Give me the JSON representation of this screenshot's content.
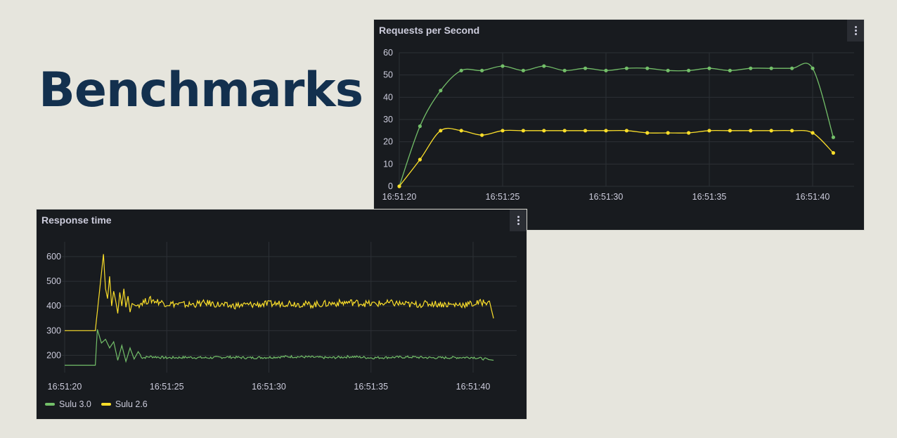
{
  "page": {
    "headline": "Benchmarks"
  },
  "colors": {
    "sulu30": "#73bf69",
    "sulu26": "#fade2a"
  },
  "legend": [
    {
      "label": "Sulu 3.0",
      "color": "#73bf69"
    },
    {
      "label": "Sulu 2.6",
      "color": "#fade2a"
    }
  ],
  "chart_data": [
    {
      "type": "line",
      "title": "Requests per Second",
      "x": [
        "16:51:20",
        "16:51:21",
        "16:51:22",
        "16:51:23",
        "16:51:24",
        "16:51:25",
        "16:51:26",
        "16:51:27",
        "16:51:28",
        "16:51:29",
        "16:51:30",
        "16:51:31",
        "16:51:32",
        "16:51:33",
        "16:51:34",
        "16:51:35",
        "16:51:36",
        "16:51:37",
        "16:51:38",
        "16:51:39",
        "16:51:40",
        "16:51:41"
      ],
      "x_ticks": [
        "16:51:20",
        "16:51:25",
        "16:51:30",
        "16:51:35",
        "16:51:40"
      ],
      "y_ticks": [
        "0",
        "10",
        "20",
        "30",
        "40",
        "50",
        "60"
      ],
      "ylim": [
        0,
        60
      ],
      "grid": true,
      "series": [
        {
          "name": "Sulu 3.0",
          "color": "#73bf69",
          "values": [
            0,
            27,
            43,
            52,
            52,
            54,
            52,
            54,
            52,
            53,
            52,
            53,
            53,
            52,
            52,
            53,
            52,
            53,
            53,
            53,
            53,
            22
          ]
        },
        {
          "name": "Sulu 2.6",
          "color": "#fade2a",
          "values": [
            0,
            12,
            25,
            25,
            23,
            25,
            25,
            25,
            25,
            25,
            25,
            25,
            24,
            24,
            24,
            25,
            25,
            25,
            25,
            25,
            24,
            15
          ]
        }
      ]
    },
    {
      "type": "line",
      "title": "Response time",
      "x_range": [
        "16:51:20",
        "16:51:41.5"
      ],
      "x_ticks": [
        "16:51:20",
        "16:51:25",
        "16:51:30",
        "16:51:35",
        "16:51:40"
      ],
      "y_ticks": [
        "200",
        "300",
        "400",
        "500",
        "600"
      ],
      "ylim": [
        130,
        660
      ],
      "grid": true,
      "legend_position": "bottom-left",
      "series": [
        {
          "name": "Sulu 3.0",
          "color": "#73bf69",
          "t": [
            0,
            1.5,
            1.6,
            1.8,
            2.0,
            2.2,
            2.4,
            2.6,
            2.8,
            3.0,
            3.2,
            3.4,
            3.6,
            3.8,
            4.2,
            5,
            6,
            7,
            8,
            9,
            10,
            11,
            12,
            13,
            14,
            15,
            16,
            17,
            18,
            19,
            20,
            21.0
          ],
          "values": [
            160,
            160,
            305,
            250,
            265,
            230,
            255,
            180,
            240,
            175,
            230,
            185,
            215,
            190,
            195,
            190,
            192,
            190,
            193,
            190,
            192,
            195,
            193,
            190,
            195,
            190,
            192,
            193,
            190,
            191,
            192,
            180
          ]
        },
        {
          "name": "Sulu 2.6",
          "color": "#fade2a",
          "t": [
            0,
            1.5,
            1.9,
            2.0,
            2.1,
            2.2,
            2.3,
            2.4,
            2.5,
            2.6,
            2.7,
            2.8,
            2.9,
            3.0,
            3.1,
            3.2,
            3.3,
            3.5,
            3.8,
            4.2,
            5,
            6,
            7,
            8,
            9,
            10,
            11,
            12,
            13,
            14,
            15,
            16,
            17,
            18,
            19,
            20,
            20.8,
            21.0
          ],
          "values": [
            300,
            300,
            610,
            470,
            430,
            520,
            400,
            460,
            420,
            370,
            455,
            400,
            470,
            395,
            440,
            375,
            410,
            400,
            415,
            425,
            410,
            405,
            412,
            400,
            405,
            408,
            412,
            405,
            410,
            415,
            408,
            412,
            405,
            410,
            405,
            408,
            420,
            350
          ]
        }
      ]
    }
  ]
}
